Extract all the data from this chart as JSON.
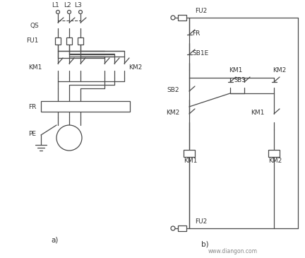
{
  "bg_color": "#ffffff",
  "line_color": "#4a4a4a",
  "text_color": "#333333",
  "fig_width": 4.32,
  "fig_height": 3.65,
  "dpi": 100,
  "label_a": "a)",
  "label_b": "b)",
  "watermark": "www.diangon.com"
}
